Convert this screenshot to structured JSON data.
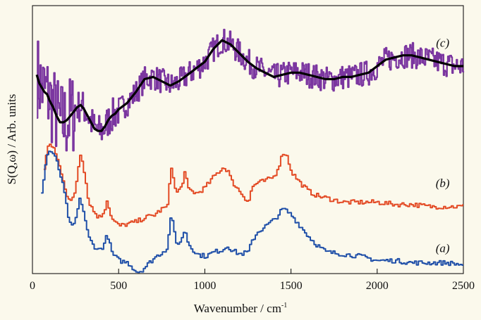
{
  "chart_data": {
    "type": "line",
    "xlabel": "Wavenumber / cm",
    "xlabel_sup": "-1",
    "ylabel": "S(Q,ω) / Arb. units",
    "xlim": [
      0,
      2500
    ],
    "x_ticks": [
      0,
      500,
      1000,
      1500,
      2000,
      2500
    ],
    "y_ticks_labeled": false,
    "grid": false,
    "legend": "none",
    "series": [
      {
        "name": "(c)",
        "color": "#7b36a0",
        "style": "step-noisy",
        "x": [
          25,
          40,
          55,
          70,
          85,
          100,
          120,
          140,
          160,
          180,
          200,
          220,
          240,
          260,
          280,
          300,
          320,
          340,
          360,
          380,
          400,
          420,
          440,
          460,
          480,
          500,
          550,
          600,
          650,
          700,
          750,
          800,
          850,
          900,
          950,
          1000,
          1050,
          1100,
          1150,
          1200,
          1250,
          1300,
          1350,
          1400,
          1450,
          1500,
          1550,
          1600,
          1650,
          1700,
          1750,
          1800,
          1850,
          1900,
          1950,
          2000,
          2050,
          2100,
          2150,
          2200,
          2250,
          2300,
          2350,
          2400,
          2450,
          2500
        ],
        "y": [
          92,
          88,
          86,
          84,
          83,
          80,
          77,
          73,
          70,
          70,
          71,
          73,
          75,
          77,
          78,
          76,
          73,
          70,
          67,
          66,
          66,
          68,
          71,
          73,
          74,
          76,
          79,
          84,
          90,
          91,
          89,
          87,
          89,
          92,
          95,
          98,
          104,
          108,
          106,
          102,
          98,
          95,
          93,
          91,
          92,
          93,
          93,
          92,
          91,
          90,
          90,
          91,
          91,
          92,
          93,
          96,
          99,
          100,
          101,
          101,
          100,
          99,
          98,
          97,
          96,
          96
        ]
      },
      {
        "name": "",
        "color": "#000000",
        "style": "smooth",
        "x": [
          25,
          40,
          55,
          70,
          85,
          100,
          120,
          140,
          160,
          180,
          200,
          220,
          240,
          260,
          280,
          300,
          320,
          340,
          360,
          380,
          400,
          420,
          440,
          460,
          480,
          500,
          550,
          600,
          650,
          700,
          750,
          800,
          850,
          900,
          950,
          1000,
          1050,
          1100,
          1150,
          1200,
          1250,
          1300,
          1350,
          1400,
          1450,
          1500,
          1550,
          1600,
          1650,
          1700,
          1750,
          1800,
          1850,
          1900,
          1950,
          2000,
          2050,
          2100,
          2150,
          2200,
          2250,
          2300,
          2350,
          2400,
          2450,
          2500
        ],
        "y": [
          92,
          88,
          86,
          84,
          83,
          80,
          77,
          73,
          70,
          70,
          71,
          73,
          75,
          77,
          78,
          76,
          73,
          70,
          67,
          66,
          66,
          68,
          71,
          73,
          74,
          76,
          79,
          84,
          90,
          91,
          89,
          87,
          89,
          92,
          95,
          98,
          104,
          108,
          106,
          102,
          98,
          95,
          93,
          91,
          92,
          93,
          93,
          92,
          91,
          90,
          90,
          91,
          91,
          92,
          93,
          96,
          99,
          100,
          101,
          101,
          100,
          99,
          98,
          97,
          96,
          96
        ]
      },
      {
        "name": "(b)",
        "color": "#e34a24",
        "style": "step",
        "x": [
          65,
          80,
          100,
          120,
          140,
          160,
          180,
          200,
          220,
          240,
          260,
          270,
          280,
          300,
          320,
          350,
          380,
          400,
          420,
          430,
          440,
          460,
          500,
          550,
          600,
          650,
          700,
          750,
          780,
          800,
          810,
          830,
          860,
          880,
          900,
          950,
          1000,
          1050,
          1100,
          1130,
          1150,
          1200,
          1250,
          1270,
          1300,
          1350,
          1400,
          1430,
          1450,
          1470,
          1500,
          1550,
          1600,
          1650,
          1700,
          1800,
          1900,
          2000,
          2100,
          2200,
          2300,
          2400,
          2500
        ],
        "y": [
          48,
          57,
          60,
          58,
          53,
          48,
          42,
          35,
          33,
          37,
          47,
          56,
          55,
          46,
          34,
          29,
          26,
          27,
          31,
          35,
          30,
          25,
          22,
          23,
          24,
          26,
          27,
          30,
          31,
          51,
          45,
          37,
          40,
          47,
          39,
          37,
          40,
          45,
          49,
          48,
          43,
          38,
          33,
          40,
          42,
          43,
          45,
          51,
          56,
          55,
          47,
          42,
          38,
          36,
          35,
          33,
          33,
          33,
          32,
          32,
          31,
          31,
          31
        ]
      },
      {
        "name": "(a)",
        "color": "#1f4fa8",
        "style": "step",
        "x": [
          50,
          65,
          80,
          100,
          120,
          140,
          160,
          180,
          200,
          220,
          240,
          260,
          270,
          280,
          300,
          320,
          350,
          380,
          400,
          420,
          430,
          440,
          460,
          500,
          550,
          600,
          620,
          650,
          700,
          750,
          780,
          800,
          810,
          830,
          860,
          880,
          900,
          950,
          1000,
          1050,
          1100,
          1130,
          1150,
          1200,
          1250,
          1270,
          1300,
          1350,
          1400,
          1430,
          1450,
          1470,
          1500,
          1550,
          1600,
          1650,
          1700,
          1800,
          1900,
          2000,
          2100,
          2200,
          2300,
          2400,
          2500
        ],
        "y": [
          38,
          46,
          55,
          57,
          55,
          51,
          45,
          38,
          28,
          21,
          23,
          30,
          34,
          33,
          26,
          17,
          13,
          11,
          12,
          15,
          19,
          15,
          9,
          6,
          5,
          1,
          1,
          3,
          7,
          10,
          12,
          28,
          23,
          14,
          15,
          21,
          14,
          9,
          8,
          10,
          11,
          13,
          11,
          9,
          10,
          15,
          19,
          22,
          25,
          28,
          30,
          29,
          27,
          22,
          17,
          13,
          10,
          9,
          8,
          6,
          6,
          5,
          5,
          5,
          4
        ]
      }
    ],
    "annotations": [
      {
        "text": "(c)",
        "x": 2380,
        "y": 105
      },
      {
        "text": "(b)",
        "x": 2380,
        "y": 40
      },
      {
        "text": "(a)",
        "x": 2380,
        "y": 10
      }
    ]
  }
}
